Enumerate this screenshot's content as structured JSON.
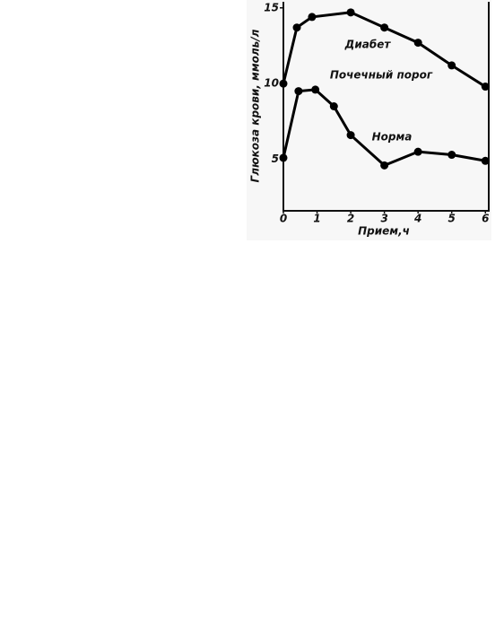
{
  "chart_data": {
    "type": "line",
    "y_label": "Глюкоза крови, ммоль/л",
    "x_label": "Прием,ч",
    "annotations": [
      "Диабет",
      "Почечный порог",
      "Норма"
    ],
    "xlim": [
      0,
      6.1
    ],
    "xticks": [
      0,
      1,
      2,
      3,
      4,
      5,
      6
    ],
    "ylim": [
      1.6,
      15.4
    ],
    "yticks": [
      5,
      10,
      15
    ],
    "series": [
      {
        "name": "Диабет",
        "color": "#000000",
        "x": [
          0,
          0.4,
          0.85,
          2,
          3,
          4,
          5,
          6
        ],
        "values": [
          10,
          13.7,
          14.4,
          14.7,
          13.7,
          12.7,
          11.2,
          9.8
        ]
      },
      {
        "name": "Норма",
        "color": "#000000",
        "x": [
          0,
          0.45,
          0.95,
          1.5,
          2,
          3,
          4,
          5,
          6
        ],
        "values": [
          5.1,
          9.5,
          9.6,
          8.5,
          6.6,
          4.6,
          5.5,
          5.3,
          4.9
        ]
      }
    ]
  }
}
